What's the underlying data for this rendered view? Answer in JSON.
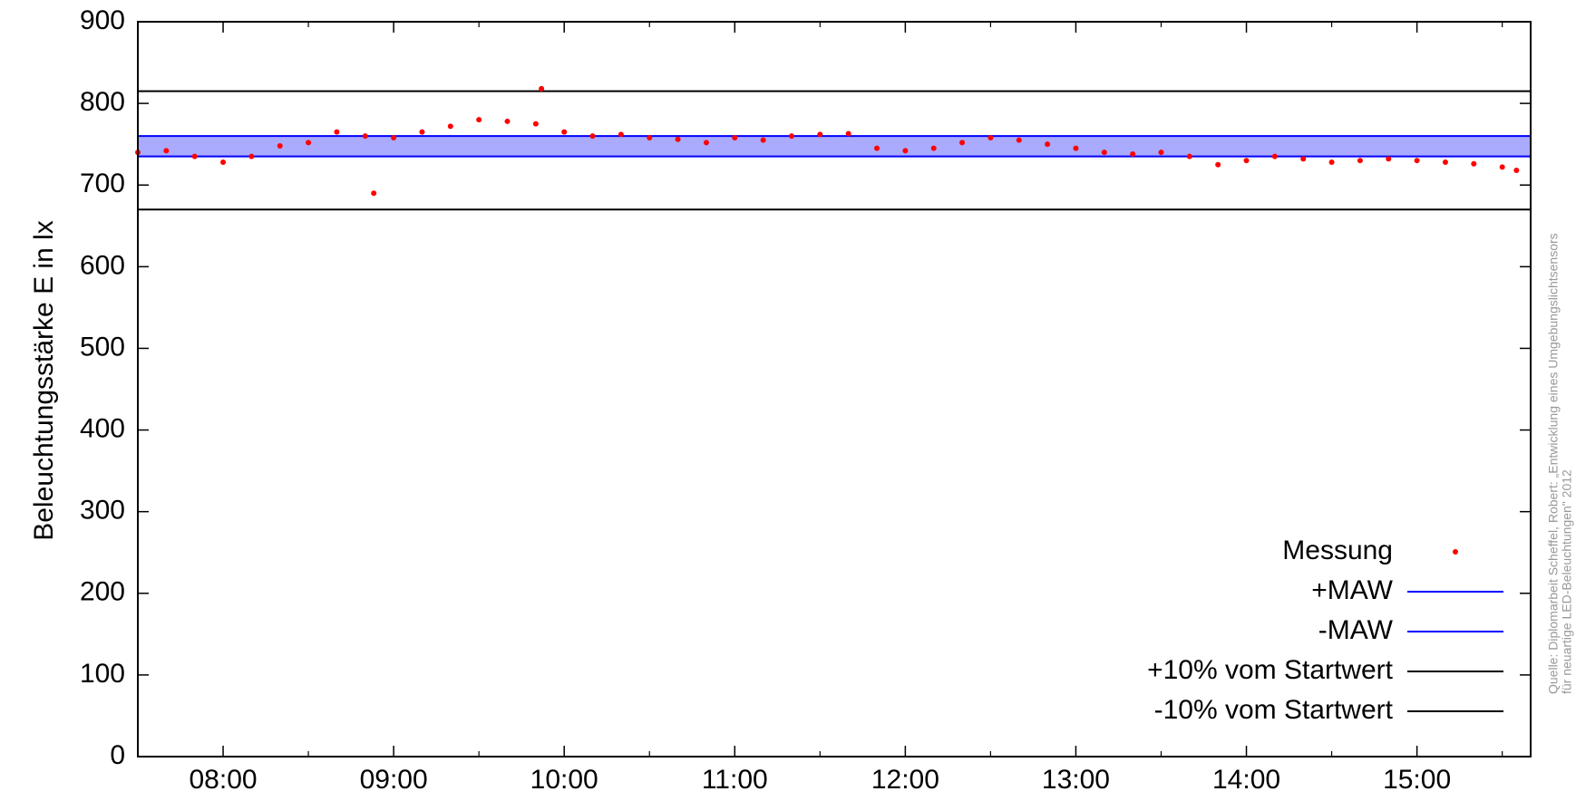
{
  "chart_data": {
    "type": "scatter",
    "y_label": "Beleuchtungsstärke E in lx",
    "notes": [
      "Quelle: Diplomarbeit Scheffel, Robert: „Entwicklung eines Umgebungslichtsensors",
      "für neuartige LED-Beleuchtungen\" 2012"
    ],
    "xlim": [
      "07:30",
      "15:40"
    ],
    "xticks": [
      "08:00",
      "09:00",
      "10:00",
      "11:00",
      "12:00",
      "13:00",
      "14:00",
      "15:00"
    ],
    "ylim": [
      0,
      900
    ],
    "yticks": [
      0,
      100,
      200,
      300,
      400,
      500,
      600,
      700,
      800,
      900
    ],
    "band_fill": "#aaaaff",
    "legend": "bottom-right",
    "series": [
      {
        "name": "Messung",
        "color": "#ff0000",
        "x": [
          "07:30",
          "07:40",
          "07:50",
          "08:00",
          "08:10",
          "08:20",
          "08:30",
          "08:40",
          "08:50",
          "08:53",
          "09:00",
          "09:10",
          "09:20",
          "09:30",
          "09:40",
          "09:50",
          "09:52",
          "10:00",
          "10:10",
          "10:20",
          "10:30",
          "10:40",
          "10:50",
          "11:00",
          "11:10",
          "11:20",
          "11:30",
          "11:40",
          "11:50",
          "12:00",
          "12:10",
          "12:20",
          "12:30",
          "12:40",
          "12:50",
          "13:00",
          "13:10",
          "13:20",
          "13:30",
          "13:40",
          "13:50",
          "14:00",
          "14:10",
          "14:20",
          "14:30",
          "14:40",
          "14:50",
          "15:00",
          "15:10",
          "15:20",
          "15:30",
          "15:35"
        ],
        "values": [
          740,
          742,
          735,
          728,
          735,
          748,
          752,
          765,
          760,
          690,
          758,
          765,
          772,
          780,
          778,
          775,
          818,
          765,
          760,
          762,
          758,
          756,
          752,
          758,
          755,
          760,
          762,
          763,
          745,
          742,
          745,
          752,
          758,
          755,
          750,
          745,
          740,
          738,
          740,
          735,
          725,
          730,
          735,
          732,
          728,
          730,
          732,
          730,
          728,
          726,
          722,
          718
        ]
      },
      {
        "name": "+MAW",
        "color": "#0000ff",
        "value": 760
      },
      {
        "name": "-MAW",
        "color": "#0000ff",
        "value": 735
      },
      {
        "name": "+10% vom Startwert",
        "color": "#000000",
        "value": 815
      },
      {
        "name": "-10% vom Startwert",
        "color": "#000000",
        "value": 670
      }
    ]
  }
}
